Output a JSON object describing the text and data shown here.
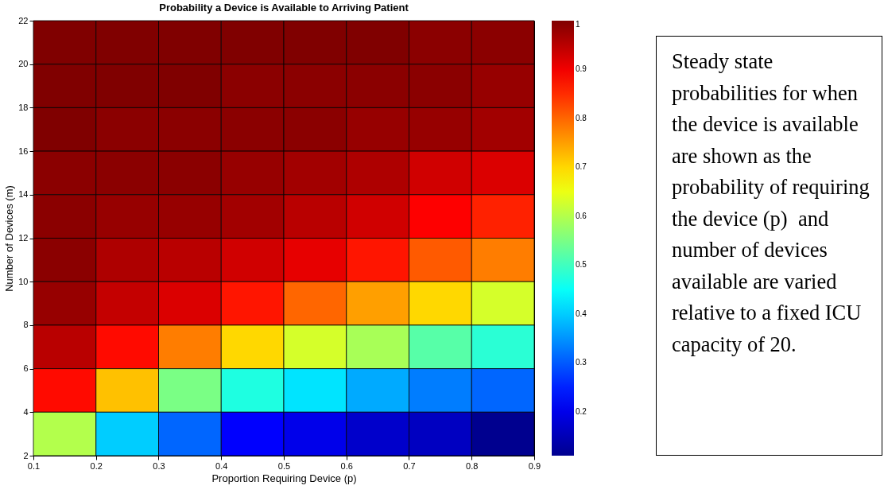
{
  "chart_data": {
    "type": "heatmap",
    "title": "Probability a Device is Available to Arriving Patient",
    "xlabel": "Proportion Requiring Device (p)",
    "ylabel": "Number of Devices (m)",
    "xlim": [
      0.1,
      0.9
    ],
    "xticks": [
      0.1,
      0.2,
      0.3,
      0.4,
      0.5,
      0.6,
      0.7,
      0.8,
      0.9
    ],
    "ylim": [
      2,
      22
    ],
    "yticks": [
      2,
      4,
      6,
      8,
      10,
      12,
      14,
      16,
      18,
      20,
      22
    ],
    "cells": [
      [
        1,
        1,
        1,
        1,
        1,
        1,
        0.99,
        0.99
      ],
      [
        1,
        1,
        1,
        0.99,
        0.99,
        0.99,
        0.99,
        0.98
      ],
      [
        1,
        0.99,
        0.99,
        0.99,
        0.99,
        0.98,
        0.98,
        0.97
      ],
      [
        0.99,
        0.99,
        0.99,
        0.98,
        0.97,
        0.96,
        0.93,
        0.92
      ],
      [
        0.99,
        0.98,
        0.98,
        0.97,
        0.95,
        0.93,
        0.89,
        0.86
      ],
      [
        0.99,
        0.96,
        0.95,
        0.93,
        0.91,
        0.87,
        0.81,
        0.78
      ],
      [
        0.98,
        0.94,
        0.92,
        0.87,
        0.8,
        0.75,
        0.7,
        0.63
      ],
      [
        0.95,
        0.88,
        0.78,
        0.7,
        0.63,
        0.59,
        0.52,
        0.48
      ],
      [
        0.88,
        0.72,
        0.55,
        0.47,
        0.42,
        0.37,
        0.33,
        0.31
      ],
      [
        0.6,
        0.4,
        0.31,
        0.22,
        0.2,
        0.17,
        0.16,
        0.11
      ]
    ],
    "clim": [
      0.11,
      1
    ],
    "cticks": [
      0.2,
      0.3,
      0.4,
      0.5,
      0.6,
      0.7,
      0.8,
      0.9,
      1
    ],
    "annotations": [
      "Steady state probabilities for when the device is available are shown as the probability of requiring the device (p)  and number of devices available are varied relative to a fixed ICU capacity of 20."
    ]
  }
}
